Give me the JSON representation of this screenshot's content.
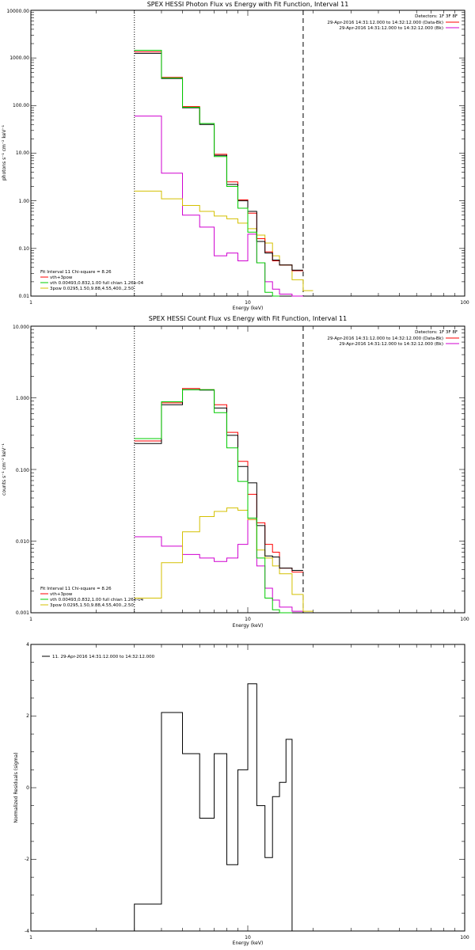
{
  "chart_data": [
    {
      "type": "line",
      "title": "SPEX HESSI Photon Flux vs Energy with Fit Function, Interval 11",
      "xlabel": "Energy (keV)",
      "ylabel": "photons s⁻¹ cm⁻² keV⁻¹",
      "xscale": "log",
      "yscale": "log",
      "xlim": [
        1,
        100
      ],
      "ylim": [
        0.01,
        10000
      ],
      "x_ticks": [
        "1",
        "10",
        "100"
      ],
      "y_ticks": [
        "0.01",
        "0.10",
        "1.00",
        "10.00",
        "100.00",
        "1000.00",
        "10000.00"
      ],
      "reference_lines": [
        {
          "x": 3.0,
          "style": "dotted"
        },
        {
          "x": 18.0,
          "style": "dashed"
        }
      ],
      "legend_top": [
        {
          "text": "Detectors: 1F 3F 8F",
          "color": null
        },
        {
          "text": "29-Apr-2016 14:31:12.000 to 14:32:12.000 (Data-Bk)",
          "color": "#ff0000"
        },
        {
          "text": "29-Apr-2016 14:31:12.000 to 14:32:12.000 (Bk)",
          "color": "#d000d0"
        }
      ],
      "legend_bottom": [
        {
          "text": "Fit Interval 11   Chi-square = 8.26",
          "color": null
        },
        {
          "text": "vth+3pow",
          "color": "#ff0000"
        },
        {
          "text": "vth 0.00493,0.832,1.00  full chian 1.26e-04",
          "color": "#00cc00"
        },
        {
          "text": "3pow 0.0295,1.50,9.88,4.55,400.,2.50",
          "color": "#d4c000"
        }
      ],
      "edges": [
        3,
        4,
        5,
        6,
        7,
        8,
        9,
        10,
        11,
        12,
        13,
        14,
        16,
        18,
        20
      ],
      "series": [
        {
          "color": "#d000d0",
          "values": [
            60,
            3.8,
            0.5,
            0.28,
            0.07,
            0.08,
            0.055,
            0.2,
            0.05,
            0.02,
            0.014,
            0.011,
            0.01,
            null
          ]
        },
        {
          "color": "#d4c000",
          "values": [
            1.6,
            1.1,
            0.8,
            0.6,
            0.48,
            0.42,
            0.34,
            0.26,
            0.19,
            0.13,
            0.07,
            0.045,
            0.022,
            0.013
          ]
        },
        {
          "color": "#ff0000",
          "values": [
            1350,
            390,
            95,
            42,
            9.5,
            2.5,
            1.05,
            0.55,
            0.16,
            0.085,
            0.055,
            0.045,
            0.034,
            null
          ]
        },
        {
          "color": "#000000",
          "values": [
            1250,
            370,
            90,
            40,
            9.0,
            2.2,
            1.0,
            0.6,
            0.14,
            0.08,
            0.057,
            0.045,
            0.035,
            null
          ]
        },
        {
          "color": "#00cc00",
          "values": [
            1450,
            380,
            92,
            42,
            8.5,
            2.0,
            0.7,
            0.22,
            0.05,
            0.012,
            0.01,
            null,
            null,
            null
          ]
        }
      ]
    },
    {
      "type": "line",
      "title": "SPEX HESSI Count Flux vs Energy with Fit Function, Interval 11",
      "xlabel": "Energy (keV)",
      "ylabel": "counts s⁻¹ cm⁻² keV⁻¹",
      "xscale": "log",
      "yscale": "log",
      "xlim": [
        1,
        100
      ],
      "ylim": [
        0.001,
        10
      ],
      "x_ticks": [
        "1",
        "10",
        "100"
      ],
      "y_ticks": [
        "0.001",
        "0.010",
        "0.100",
        "1.000",
        "10.000"
      ],
      "reference_lines": [
        {
          "x": 3.0,
          "style": "dotted"
        },
        {
          "x": 18.0,
          "style": "dashed"
        }
      ],
      "legend_top": [
        {
          "text": "Detectors: 1F 3F 8F",
          "color": null
        },
        {
          "text": "29-Apr-2016 14:31:12.000 to 14:32:12.000 (Data-Bk)",
          "color": "#ff0000"
        },
        {
          "text": "29-Apr-2016 14:31:12.000 to 14:32:12.000 (Bk)",
          "color": "#d000d0"
        }
      ],
      "legend_bottom": [
        {
          "text": "Fit Interval 11   Chi-square = 8.26",
          "color": null
        },
        {
          "text": "vth+3pow",
          "color": "#ff0000"
        },
        {
          "text": "vth 0.00493,0.832,1.00  full chian 1.26e-04",
          "color": "#00cc00"
        },
        {
          "text": "3pow 0.0295,1.50,9.88,4.55,400.,2.50",
          "color": "#d4c000"
        }
      ],
      "edges": [
        3,
        4,
        5,
        6,
        7,
        8,
        9,
        10,
        11,
        12,
        13,
        14,
        16,
        18,
        20
      ],
      "series": [
        {
          "color": "#d000d0",
          "values": [
            0.0115,
            0.0085,
            0.0065,
            0.0058,
            0.0052,
            0.0058,
            0.009,
            0.02,
            0.0045,
            0.0022,
            0.0015,
            0.0012,
            0.00105,
            null
          ]
        },
        {
          "color": "#d4c000",
          "values": [
            0.0016,
            0.005,
            0.0135,
            0.022,
            0.026,
            0.029,
            0.027,
            0.02,
            0.0075,
            0.0058,
            0.0045,
            0.0035,
            0.0018,
            0.00105
          ]
        },
        {
          "color": "#ff0000",
          "values": [
            0.25,
            0.85,
            1.35,
            1.3,
            0.8,
            0.33,
            0.13,
            0.045,
            0.018,
            0.009,
            0.007,
            0.0042,
            0.0037,
            null
          ]
        },
        {
          "color": "#000000",
          "values": [
            0.23,
            0.8,
            1.3,
            1.28,
            0.72,
            0.3,
            0.11,
            0.065,
            0.0165,
            0.0062,
            0.006,
            0.0042,
            0.0039,
            null
          ]
        },
        {
          "color": "#00cc00",
          "values": [
            0.27,
            0.88,
            1.3,
            1.3,
            0.62,
            0.2,
            0.068,
            0.021,
            0.0058,
            0.0016,
            0.0011,
            0.001,
            null,
            null
          ]
        }
      ]
    },
    {
      "type": "line",
      "title": "",
      "xlabel": "Energy (keV)",
      "ylabel": "Normalized Residuals (sigma)",
      "xscale": "log",
      "yscale": "linear",
      "xlim": [
        1,
        100
      ],
      "ylim": [
        -4,
        4
      ],
      "x_ticks": [
        "1",
        "10",
        "100"
      ],
      "y_ticks": [
        "-4",
        "-2",
        "0",
        "2",
        "4"
      ],
      "legend_top": [
        {
          "text": "11. 29-Apr-2016 14:31:12.000 to 14:32:12.000",
          "color": "#000000"
        }
      ],
      "edges": [
        3,
        4,
        5,
        6,
        7,
        8,
        9,
        10,
        11,
        12,
        13,
        14,
        15,
        16,
        18
      ],
      "series": [
        {
          "color": "#000000",
          "values": [
            -3.25,
            2.1,
            0.95,
            -0.85,
            0.95,
            -2.15,
            0.5,
            2.9,
            -0.5,
            -1.95,
            -0.25,
            0.15,
            1.35,
            null
          ]
        }
      ]
    }
  ]
}
